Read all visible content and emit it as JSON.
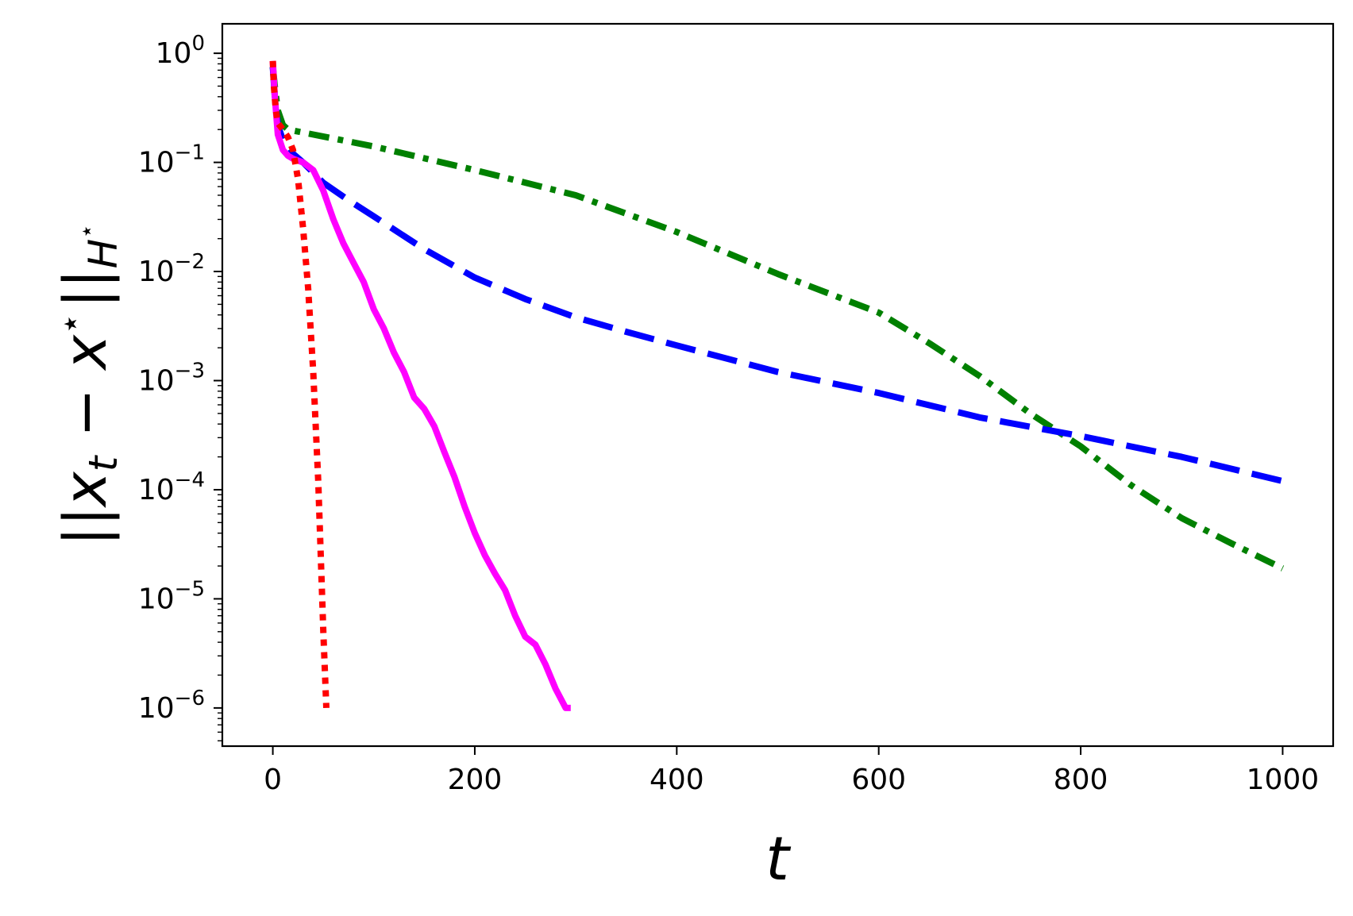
{
  "chart_data": {
    "type": "line",
    "title": "",
    "xlabel": "t",
    "ylabel": "||x_t − x*||_{H*}",
    "ylabel_parts": {
      "open": "||",
      "x": "x",
      "t": "t",
      "minus": " − ",
      "xstar": "x",
      "star": "⋆",
      "close": "||",
      "sub": "H",
      "sub_star": "⋆"
    },
    "xlim": [
      -50,
      1050
    ],
    "ylim_log10": [
      -6.35,
      0.27
    ],
    "yscale": "log",
    "grid": false,
    "x_ticks": [
      0,
      200,
      400,
      600,
      800,
      1000
    ],
    "x_tick_labels": [
      "0",
      "200",
      "400",
      "600",
      "800",
      "1000"
    ],
    "y_ticks_exponent": [
      0,
      -1,
      -2,
      -3,
      -4,
      -5,
      -6
    ],
    "y_tick_labels": [
      {
        "base": "10",
        "exp": "0"
      },
      {
        "base": "10",
        "exp": "−1"
      },
      {
        "base": "10",
        "exp": "−2"
      },
      {
        "base": "10",
        "exp": "−3"
      },
      {
        "base": "10",
        "exp": "−4"
      },
      {
        "base": "10",
        "exp": "−5"
      },
      {
        "base": "10",
        "exp": "−6"
      }
    ],
    "series": [
      {
        "color": "#008000",
        "style": "dashdot",
        "x": [
          0,
          2,
          5,
          10,
          15,
          100,
          200,
          300,
          400,
          500,
          600,
          650,
          700,
          750,
          800,
          850,
          900,
          950,
          1000
        ],
        "y": [
          0.75,
          0.5,
          0.3,
          0.22,
          0.2,
          0.14,
          0.085,
          0.05,
          0.023,
          0.0095,
          0.0042,
          0.0022,
          0.0011,
          0.0005,
          0.00025,
          0.00011,
          5.5e-05,
          3.2e-05,
          1.9e-05
        ]
      },
      {
        "color": "#0000ff",
        "style": "dashed",
        "x": [
          0,
          2,
          5,
          10,
          20,
          30,
          50,
          75,
          100,
          150,
          200,
          250,
          300,
          350,
          400,
          500,
          600,
          700,
          800,
          900,
          1000
        ],
        "y": [
          0.75,
          0.4,
          0.22,
          0.16,
          0.12,
          0.1,
          0.065,
          0.045,
          0.032,
          0.016,
          0.0088,
          0.0056,
          0.0038,
          0.0028,
          0.0021,
          0.0012,
          0.00077,
          0.00046,
          0.00031,
          0.0002,
          0.00012
        ]
      },
      {
        "color": "#ff00ff",
        "style": "solid",
        "x": [
          0,
          2,
          5,
          10,
          15,
          20,
          30,
          40,
          50,
          60,
          70,
          80,
          90,
          100,
          110,
          120,
          130,
          140,
          150,
          160,
          170,
          180,
          190,
          200,
          210,
          220,
          230,
          240,
          250,
          260,
          270,
          280,
          290,
          295
        ],
        "y": [
          0.85,
          0.4,
          0.18,
          0.13,
          0.115,
          0.108,
          0.1,
          0.085,
          0.055,
          0.03,
          0.018,
          0.012,
          0.008,
          0.0045,
          0.003,
          0.0018,
          0.0012,
          0.0007,
          0.00055,
          0.00038,
          0.00022,
          0.00013,
          7e-05,
          4e-05,
          2.5e-05,
          1.7e-05,
          1.2e-05,
          7e-06,
          4.5e-06,
          3.8e-06,
          2.5e-06,
          1.5e-06,
          1e-06,
          1e-06
        ]
      },
      {
        "color": "#ff0000",
        "style": "dotted",
        "x": [
          0,
          1,
          3,
          5,
          10,
          15,
          20,
          25,
          30,
          35,
          40,
          45,
          50,
          53
        ],
        "y": [
          0.85,
          0.5,
          0.3,
          0.23,
          0.2,
          0.17,
          0.13,
          0.07,
          0.025,
          0.007,
          0.0012,
          0.00012,
          5e-06,
          1e-06
        ]
      }
    ]
  }
}
